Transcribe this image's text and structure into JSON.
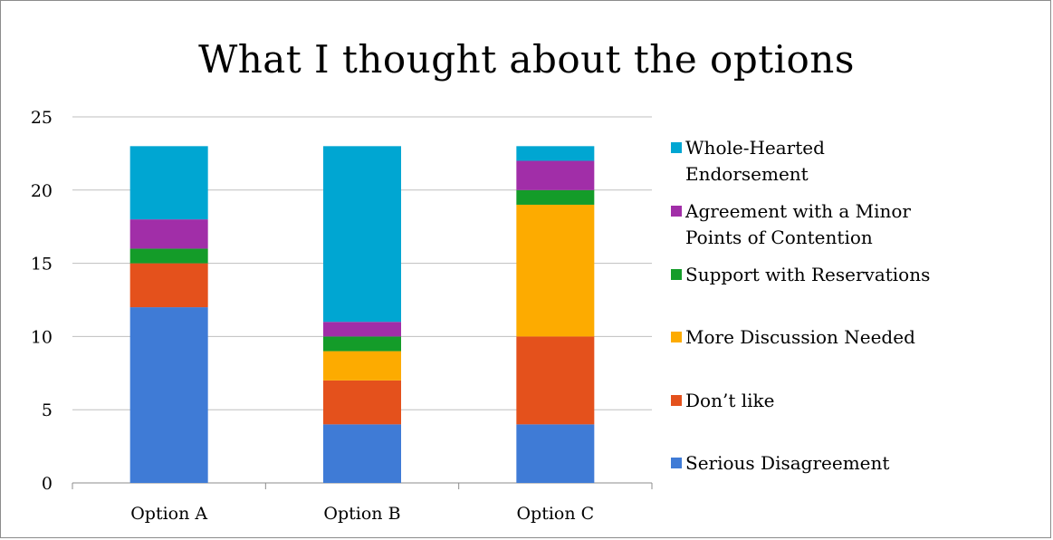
{
  "chart_data": {
    "type": "bar",
    "stacked": true,
    "title": "What I thought about the options",
    "categories": [
      "Option A",
      "Option B",
      "Option C"
    ],
    "ylim": [
      0,
      25
    ],
    "yticks": [
      0,
      5,
      10,
      15,
      20,
      25
    ],
    "grid": true,
    "legend_position": "right",
    "series": [
      {
        "name": "Serious Disagreement",
        "color": "#3f7bd6",
        "values": [
          12,
          4,
          4
        ]
      },
      {
        "name": "Don’t like",
        "color": "#e4511c",
        "values": [
          3,
          3,
          6
        ]
      },
      {
        "name": "More Discussion Needed",
        "color": "#fdab00",
        "values": [
          0,
          2,
          9
        ]
      },
      {
        "name": "Support with Reservations",
        "color": "#149c29",
        "values": [
          1,
          1,
          1
        ]
      },
      {
        "name": "Agreement with a Minor Points of Contention",
        "color": "#a12ea8",
        "values": [
          2,
          1,
          2
        ]
      },
      {
        "name": "Whole-Hearted Endorsement",
        "color": "#00a6d2",
        "values": [
          5,
          12,
          1
        ]
      }
    ],
    "legend_lines": [
      [
        "Whole-Hearted",
        "Endorsement"
      ],
      [
        "Agreement with a Minor",
        "Points of Contention"
      ],
      [
        "Support with Reservations"
      ],
      [
        "More Discussion Needed"
      ],
      [
        "Don’t like"
      ],
      [
        "Serious Disagreement"
      ]
    ]
  }
}
